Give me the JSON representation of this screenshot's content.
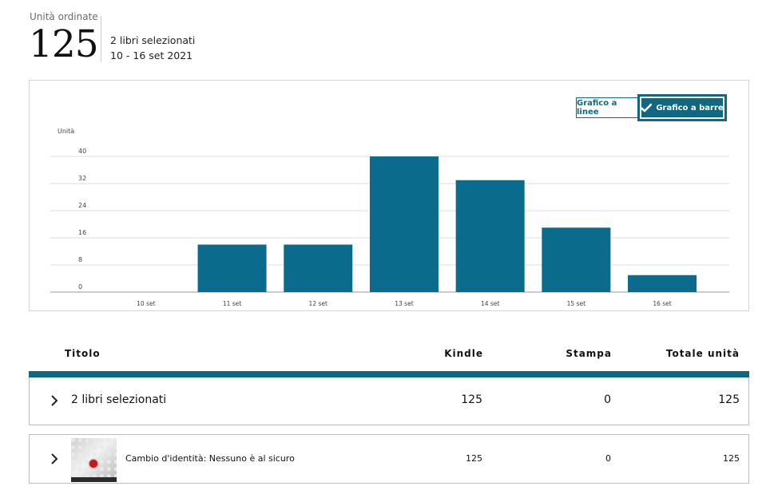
{
  "summary": {
    "label": "Unità ordinate",
    "total": "125",
    "selection": "2 libri selezionati",
    "date_range": "10 - 16 set 2021"
  },
  "chart_toggle": {
    "line_label": "Grafico a linee",
    "bar_label": "Grafico a barre",
    "selected": "bar"
  },
  "chart_data": {
    "type": "bar",
    "ylabel": "Unità",
    "xlabel": "",
    "title": "",
    "ylim": [
      0,
      40
    ],
    "yticks": [
      0,
      8,
      16,
      24,
      32,
      40
    ],
    "categories": [
      "10 set",
      "11 set",
      "12 set",
      "13 set",
      "14 set",
      "15 set",
      "16 set"
    ],
    "values": [
      0,
      14,
      14,
      40,
      33,
      19,
      5
    ],
    "grid": true,
    "bar_color": "#0b6b8c"
  },
  "table": {
    "headers": {
      "title": "Titolo",
      "kindle": "Kindle",
      "print": "Stampa",
      "total": "Totale unità"
    },
    "group_row": {
      "title": "2 libri selezionati",
      "kindle": "125",
      "print": "0",
      "total": "125"
    },
    "rows": [
      {
        "title": "Cambio d'identità: Nessuno è al sicuro",
        "kindle": "125",
        "print": "0",
        "total": "125"
      }
    ]
  },
  "colors": {
    "accent": "#10677f",
    "bar": "#0b6b8c"
  }
}
